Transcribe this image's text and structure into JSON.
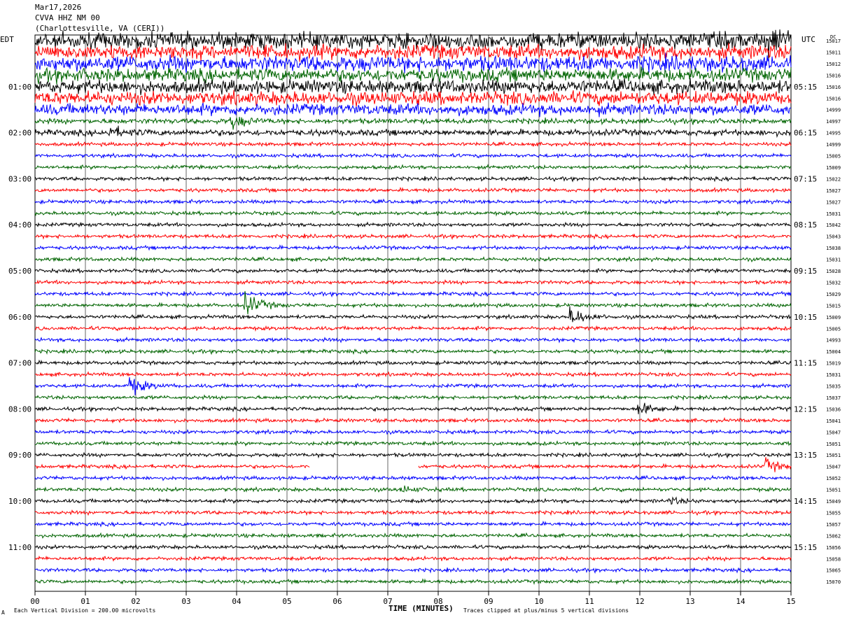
{
  "header": {
    "date": "Mar17,2026",
    "station": "CVVA HHZ NM 00",
    "location": "(Charlottesville, VA (CERI))"
  },
  "left_timezone": "EDT",
  "right_timezone": "UTC",
  "dc_label": "DC",
  "footer": {
    "scale_note": "Each Vertical Division =  200.00 microvolts",
    "clip_note": "Traces clipped at plus/minus 5 vertical divisions",
    "x_title": "TIME (MINUTES)",
    "corner_mark": "A"
  },
  "colors": {
    "trace_cycle": [
      "#000000",
      "#ff0000",
      "#0000ff",
      "#006400"
    ],
    "grid": "#000000"
  },
  "chart_data": {
    "type": "line",
    "title": "CVVA HHZ NM 00",
    "xlabel": "TIME (MINUTES)",
    "xlim": [
      0,
      15
    ],
    "x_ticks": [
      "00",
      "01",
      "02",
      "03",
      "04",
      "05",
      "06",
      "07",
      "08",
      "09",
      "10",
      "11",
      "12",
      "13",
      "14",
      "15"
    ],
    "left_time_labels": [
      "01:00",
      "02:00",
      "03:00",
      "04:00",
      "05:00",
      "06:00",
      "07:00",
      "08:00",
      "09:00",
      "10:00",
      "11:00"
    ],
    "right_time_labels": [
      "05:15",
      "06:15",
      "07:15",
      "08:15",
      "09:15",
      "10:15",
      "11:15",
      "12:15",
      "13:15",
      "14:15",
      "15:15"
    ],
    "traces_per_hour": 4,
    "trace_minutes": 15,
    "dc_offsets": [
      15017,
      15011,
      15012,
      15016,
      15016,
      15016,
      14999,
      14997,
      14995,
      14999,
      15005,
      15009,
      15022,
      15027,
      15027,
      15031,
      15042,
      15043,
      15038,
      15031,
      15028,
      15032,
      15029,
      15015,
      15009,
      15005,
      14993,
      15004,
      15019,
      15031,
      15035,
      15037,
      15036,
      15041,
      15047,
      15051,
      15051,
      15047,
      15052,
      15051,
      15049,
      15055,
      15057,
      15062,
      15056,
      15058,
      15065,
      15070
    ],
    "trace_noise": [
      1.6,
      1.4,
      1.5,
      1.3,
      1.3,
      1.3,
      1.1,
      0.5,
      0.6,
      0.35,
      0.35,
      0.35,
      0.35,
      0.35,
      0.35,
      0.35,
      0.35,
      0.35,
      0.35,
      0.35,
      0.35,
      0.35,
      0.35,
      0.35,
      0.35,
      0.35,
      0.35,
      0.35,
      0.35,
      0.35,
      0.35,
      0.35,
      0.35,
      0.35,
      0.35,
      0.35,
      0.35,
      0.35,
      0.35,
      0.35,
      0.35,
      0.35,
      0.35,
      0.35,
      0.35,
      0.35,
      0.35,
      0.35
    ],
    "events": [
      {
        "trace": 0,
        "minute": 14.6,
        "amplitude": 2.2
      },
      {
        "trace": 7,
        "minute": 3.9,
        "amplitude": 1.4
      },
      {
        "trace": 8,
        "minute": 1.5,
        "amplitude": 0.9
      },
      {
        "trace": 23,
        "minute": 4.2,
        "amplitude": 2.2
      },
      {
        "trace": 24,
        "minute": 10.65,
        "amplitude": 1.7
      },
      {
        "trace": 30,
        "minute": 1.9,
        "amplitude": 1.8
      },
      {
        "trace": 32,
        "minute": 12.0,
        "amplitude": 1.2
      },
      {
        "trace": 37,
        "minute": 14.5,
        "amplitude": 1.3
      },
      {
        "trace": 39,
        "minute": 7.3,
        "amplitude": 0.6
      },
      {
        "trace": 40,
        "minute": 12.6,
        "amplitude": 0.6
      }
    ],
    "gaps": [
      {
        "trace": 37,
        "start_minute": 5.45,
        "end_minute": 7.6
      }
    ]
  }
}
